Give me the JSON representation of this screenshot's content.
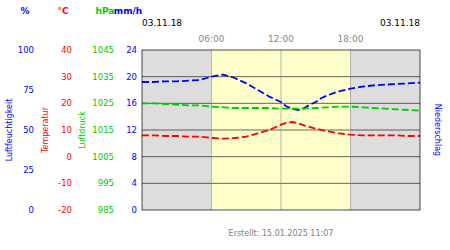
{
  "chart_data": {
    "type": "line",
    "annotations": [
      "03.11.18",
      "03.11.18",
      "Erstellt: 15.01.2025 11:07"
    ],
    "xlim": [
      0,
      24
    ],
    "xticks": [
      {
        "value": 6,
        "label": "06:00"
      },
      {
        "value": 12,
        "label": "12:00"
      },
      {
        "value": 18,
        "label": "18:00"
      }
    ],
    "ylim": [
      0,
      24
    ],
    "yticks": [
      0,
      4,
      8,
      12,
      16,
      20,
      24
    ],
    "ylabel": "Niederschlag",
    "yunit": "mm/h",
    "ycolor": "#0000ff",
    "grid": true,
    "y_scales": [
      {
        "label": "Luftfeuchtigkeit",
        "unit": "%",
        "color": "#0000ff",
        "lim": [
          0,
          100
        ],
        "ticks": [
          0,
          25,
          50,
          75,
          100
        ]
      },
      {
        "label": "Temperatur",
        "unit": "°C",
        "color": "#ff0000",
        "lim": [
          -20,
          40
        ],
        "ticks": [
          -20,
          -10,
          0,
          10,
          20,
          30,
          40
        ]
      },
      {
        "label": "Luftdruck",
        "unit": "hPa",
        "color": "#00cc00",
        "lim": [
          985,
          1045
        ],
        "ticks": [
          985,
          995,
          1005,
          1015,
          1025,
          1035,
          1045
        ]
      }
    ],
    "bands": [
      {
        "start": 0,
        "end": 6,
        "color": "#dddddd"
      },
      {
        "start": 6,
        "end": 18,
        "color": "#ffffcc"
      },
      {
        "start": 18,
        "end": 24,
        "color": "#dddddd"
      }
    ],
    "series": [
      {
        "color": "#0000ff",
        "line_style": "dashed",
        "x": [
          0,
          1,
          2,
          3,
          4,
          5,
          6,
          7,
          8,
          9,
          10,
          11,
          12,
          12.5,
          13,
          13.5,
          14,
          14.5,
          15,
          15.5,
          16,
          17,
          18,
          19,
          20,
          21,
          22,
          23,
          24
        ],
        "values": [
          19.2,
          19.2,
          19.3,
          19.3,
          19.4,
          19.5,
          20.0,
          20.3,
          19.8,
          19.0,
          18.0,
          17.0,
          16.2,
          15.5,
          15.2,
          15.0,
          15.3,
          15.8,
          16.2,
          16.8,
          17.2,
          17.8,
          18.2,
          18.5,
          18.7,
          18.8,
          18.9,
          19.0,
          19.1
        ]
      },
      {
        "color": "#00cc00",
        "line_style": "dashed",
        "x": [
          0,
          1,
          2,
          3,
          4,
          5,
          6,
          7,
          8,
          9,
          10,
          11,
          12,
          13,
          14,
          15,
          16,
          17,
          18,
          19,
          20,
          21,
          22,
          23,
          24
        ],
        "values": [
          16.0,
          16.0,
          15.9,
          15.8,
          15.7,
          15.7,
          15.5,
          15.4,
          15.3,
          15.3,
          15.3,
          15.3,
          15.2,
          15.2,
          15.2,
          15.3,
          15.4,
          15.5,
          15.5,
          15.4,
          15.3,
          15.2,
          15.1,
          15.0,
          14.9
        ]
      },
      {
        "color": "#ff0000",
        "line_style": "dashed",
        "x": [
          0,
          1,
          2,
          3,
          4,
          5,
          6,
          7,
          8,
          9,
          10,
          11,
          12,
          12.5,
          13,
          13.5,
          14,
          15,
          16,
          17,
          18,
          19,
          20,
          21,
          22,
          23,
          24
        ],
        "values": [
          11.2,
          11.2,
          11.1,
          11.1,
          11.0,
          11.0,
          10.8,
          10.7,
          10.8,
          11.0,
          11.5,
          12.0,
          12.8,
          13.1,
          13.2,
          13.0,
          12.7,
          12.2,
          11.8,
          11.5,
          11.3,
          11.2,
          11.2,
          11.2,
          11.2,
          11.1,
          11.1
        ]
      }
    ]
  }
}
